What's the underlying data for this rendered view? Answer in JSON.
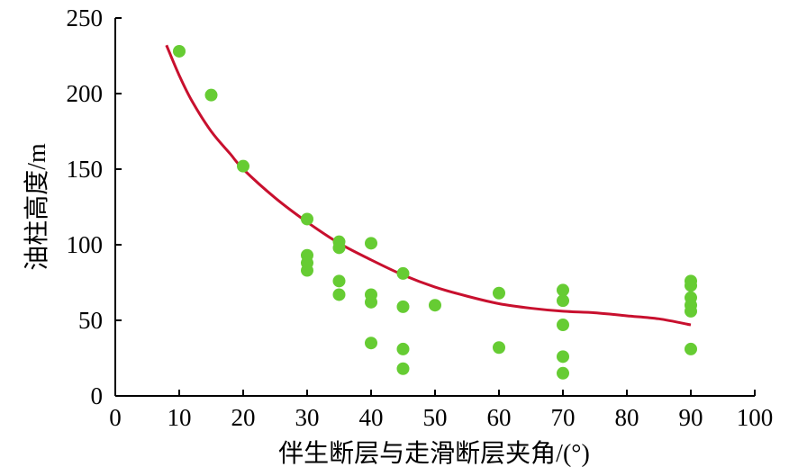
{
  "chart_data": {
    "type": "scatter",
    "title": "",
    "xlabel": "伴生断层与走滑断层夹角/(°)",
    "ylabel": "油柱高度/m",
    "xlim": [
      0,
      100
    ],
    "ylim": [
      0,
      250
    ],
    "xticks": [
      "0",
      "10",
      "20",
      "30",
      "40",
      "50",
      "60",
      "70",
      "80",
      "90",
      "100"
    ],
    "yticks": [
      "0",
      "50",
      "100",
      "150",
      "200",
      "250"
    ],
    "grid": false,
    "legend": "none",
    "colors": {
      "points": "#66cc33",
      "trend": "#c8102e",
      "axis": "#000000"
    },
    "series": [
      {
        "values": [
          [
            10,
            228
          ],
          [
            15,
            199
          ],
          [
            20,
            152
          ],
          [
            30,
            117
          ],
          [
            30,
            93
          ],
          [
            30,
            88
          ],
          [
            30,
            83
          ],
          [
            35,
            102
          ],
          [
            35,
            98
          ],
          [
            35,
            76
          ],
          [
            35,
            67
          ],
          [
            40,
            101
          ],
          [
            40,
            67
          ],
          [
            40,
            62
          ],
          [
            40,
            35
          ],
          [
            45,
            81
          ],
          [
            45,
            59
          ],
          [
            45,
            31
          ],
          [
            45,
            18
          ],
          [
            50,
            60
          ],
          [
            60,
            68
          ],
          [
            60,
            32
          ],
          [
            70,
            70
          ],
          [
            70,
            63
          ],
          [
            70,
            47
          ],
          [
            70,
            26
          ],
          [
            70,
            15
          ],
          [
            90,
            76
          ],
          [
            90,
            73
          ],
          [
            90,
            65
          ],
          [
            90,
            60
          ],
          [
            90,
            56
          ],
          [
            90,
            31
          ]
        ]
      }
    ],
    "trendline": {
      "values": [
        [
          8,
          232
        ],
        [
          10,
          212
        ],
        [
          12,
          195
        ],
        [
          15,
          175
        ],
        [
          18,
          160
        ],
        [
          20,
          150
        ],
        [
          25,
          131
        ],
        [
          30,
          115
        ],
        [
          35,
          101
        ],
        [
          40,
          90
        ],
        [
          45,
          80
        ],
        [
          50,
          72
        ],
        [
          55,
          66
        ],
        [
          60,
          61
        ],
        [
          65,
          58
        ],
        [
          70,
          56
        ],
        [
          75,
          55
        ],
        [
          80,
          53
        ],
        [
          85,
          51
        ],
        [
          90,
          47
        ]
      ]
    }
  }
}
